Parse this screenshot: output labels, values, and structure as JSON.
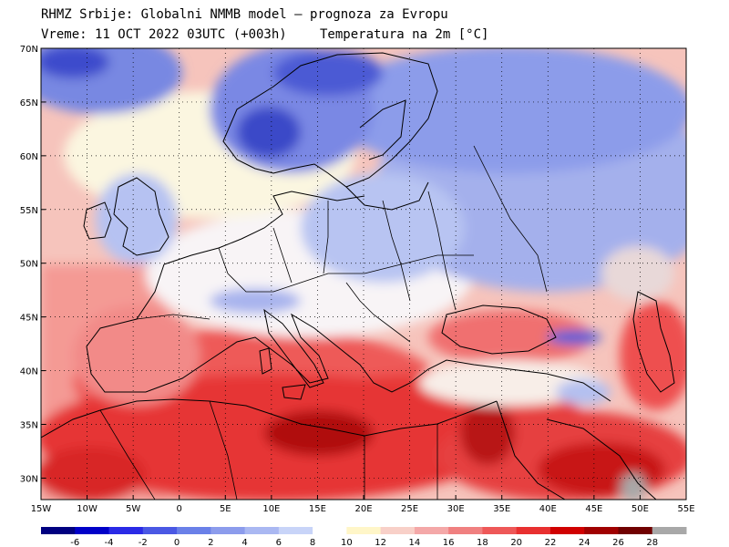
{
  "header": {
    "line1": "RHMZ Srbije: Globalni NMMB model – prognoza za Evropu",
    "line2_left": "Vreme: 11 OCT 2022 03UTC (+003h)",
    "line2_right": "Temperatura na 2m [°C]"
  },
  "map": {
    "lon_range": [
      -15,
      55
    ],
    "lat_range": [
      28,
      70
    ],
    "lon_labels": [
      "15W",
      "10W",
      "5W",
      "0",
      "5E",
      "10E",
      "15E",
      "20E",
      "25E",
      "30E",
      "35E",
      "40E",
      "45E",
      "50E",
      "55E"
    ],
    "lat_labels": [
      "30N",
      "35N",
      "40N",
      "45N",
      "50N",
      "55N",
      "60N",
      "65N",
      "70N"
    ],
    "grid": "dotted"
  },
  "legend": {
    "labels": [
      "-6",
      "-4",
      "-2",
      "0",
      "2",
      "4",
      "6",
      "8",
      "10",
      "12",
      "14",
      "16",
      "18",
      "20",
      "22",
      "24",
      "26",
      "28"
    ],
    "colors": [
      "#000080",
      "#0000c8",
      "#2a2ae6",
      "#4a58e4",
      "#6a80e8",
      "#8c9cec",
      "#aab8f2",
      "#c8d4f8",
      "#ffffff",
      "#fff6c8",
      "#f8d0c8",
      "#f4a8a8",
      "#f08080",
      "#ee5858",
      "#e83030",
      "#d00000",
      "#a00000",
      "#700000",
      "#a8a8a8"
    ]
  }
}
